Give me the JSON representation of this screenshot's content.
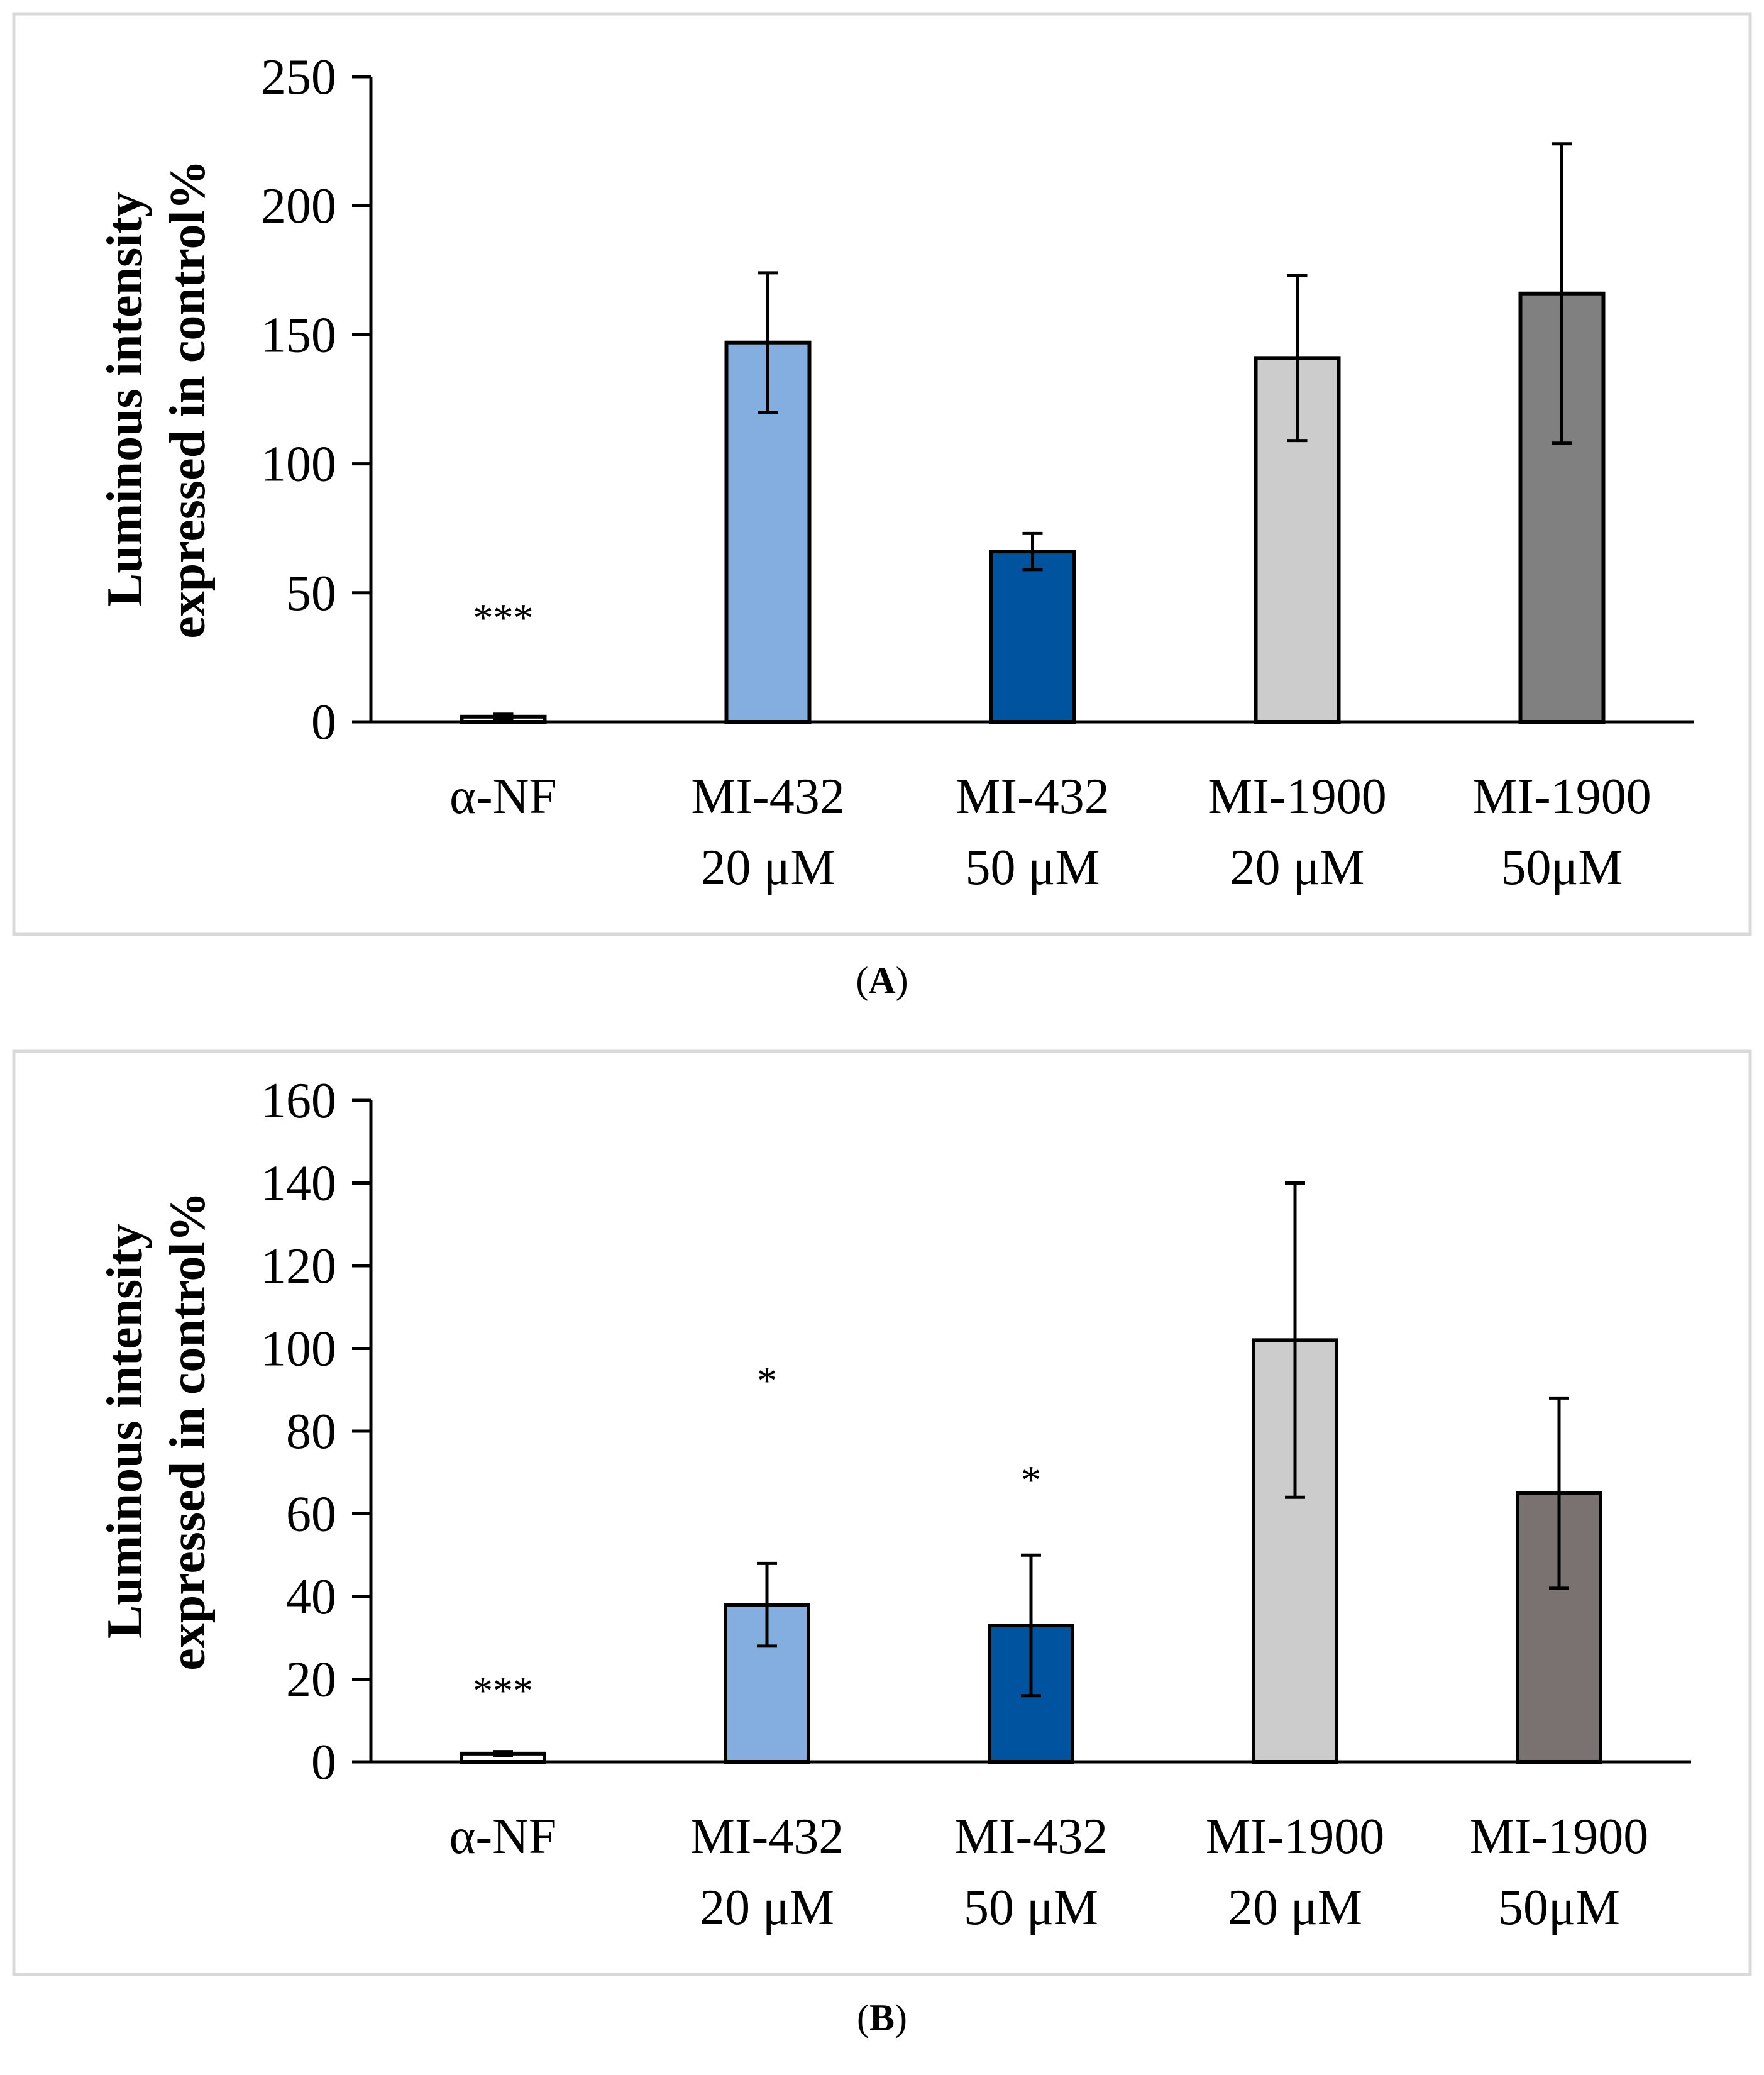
{
  "chart_data": [
    {
      "type": "bar",
      "panel": "A",
      "caption": "A",
      "ylabel_lines": [
        "Luminous intensity",
        "expressed in control%"
      ],
      "ylim": [
        0,
        250
      ],
      "yticks": [
        0,
        50,
        100,
        150,
        200,
        250
      ],
      "categories": [
        {
          "line1": "α-NF",
          "line2": ""
        },
        {
          "line1": "MI-432",
          "line2": "20 μM"
        },
        {
          "line1": "MI-432",
          "line2": "50 μM"
        },
        {
          "line1": "MI-1900",
          "line2": "20 μM"
        },
        {
          "line1": "MI-1900",
          "line2": "50μM"
        }
      ],
      "values": [
        2,
        147,
        66,
        141,
        166
      ],
      "errors": [
        1,
        27,
        7,
        32,
        58
      ],
      "colors": [
        "#ffffff",
        "#85aee0",
        "#00549f",
        "#cccccc",
        "#808080"
      ],
      "significance": [
        "***",
        "",
        "",
        "",
        ""
      ],
      "significance_y": [
        40,
        null,
        null,
        null,
        null
      ]
    },
    {
      "type": "bar",
      "panel": "B",
      "caption": "B",
      "ylabel_lines": [
        "Luminous intensity",
        "expressed in control%"
      ],
      "ylim": [
        0,
        160
      ],
      "yticks": [
        0,
        20,
        40,
        60,
        80,
        100,
        120,
        140,
        160
      ],
      "categories": [
        {
          "line1": "α-NF",
          "line2": ""
        },
        {
          "line1": "MI-432",
          "line2": "20 μM"
        },
        {
          "line1": "MI-432",
          "line2": "50 μM"
        },
        {
          "line1": "MI-1900",
          "line2": "20 μM"
        },
        {
          "line1": "MI-1900",
          "line2": "50μM"
        }
      ],
      "values": [
        2,
        38,
        33,
        102,
        65
      ],
      "errors": [
        0.5,
        10,
        17,
        38,
        23
      ],
      "colors": [
        "#ffffff",
        "#85aee0",
        "#00549f",
        "#cccccc",
        "#7a7270"
      ],
      "significance": [
        "***",
        "*",
        "*",
        "",
        ""
      ],
      "significance_y": [
        17,
        92,
        68,
        null,
        null
      ]
    }
  ]
}
